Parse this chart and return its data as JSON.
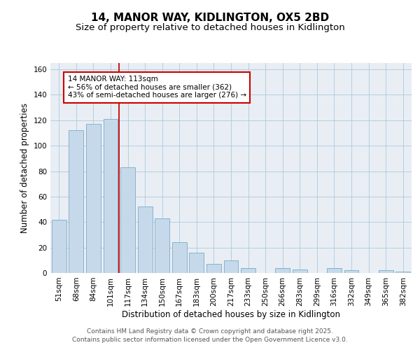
{
  "title": "14, MANOR WAY, KIDLINGTON, OX5 2BD",
  "subtitle": "Size of property relative to detached houses in Kidlington",
  "xlabel": "Distribution of detached houses by size in Kidlington",
  "ylabel": "Number of detached properties",
  "categories": [
    "51sqm",
    "68sqm",
    "84sqm",
    "101sqm",
    "117sqm",
    "134sqm",
    "150sqm",
    "167sqm",
    "183sqm",
    "200sqm",
    "217sqm",
    "233sqm",
    "250sqm",
    "266sqm",
    "283sqm",
    "299sqm",
    "316sqm",
    "332sqm",
    "349sqm",
    "365sqm",
    "382sqm"
  ],
  "values": [
    42,
    112,
    117,
    121,
    83,
    52,
    43,
    24,
    16,
    7,
    10,
    4,
    0,
    4,
    3,
    0,
    4,
    2,
    0,
    2,
    1
  ],
  "bar_color": "#c6d9ea",
  "bar_edge_color": "#7aaac8",
  "grid_color": "#afc8dc",
  "background_color": "#e8eef4",
  "vline_color": "#cc0000",
  "vline_index": 3.5,
  "annotation_text": "14 MANOR WAY: 113sqm\n← 56% of detached houses are smaller (362)\n43% of semi-detached houses are larger (276) →",
  "annotation_box_color": "#ffffff",
  "annotation_box_edge": "#cc0000",
  "ylim": [
    0,
    165
  ],
  "yticks": [
    0,
    20,
    40,
    60,
    80,
    100,
    120,
    140,
    160
  ],
  "footer": "Contains HM Land Registry data © Crown copyright and database right 2025.\nContains public sector information licensed under the Open Government Licence v3.0.",
  "title_fontsize": 11,
  "subtitle_fontsize": 9.5,
  "ylabel_fontsize": 8.5,
  "xlabel_fontsize": 8.5,
  "tick_fontsize": 7.5,
  "annotation_fontsize": 7.5,
  "footer_fontsize": 6.5
}
